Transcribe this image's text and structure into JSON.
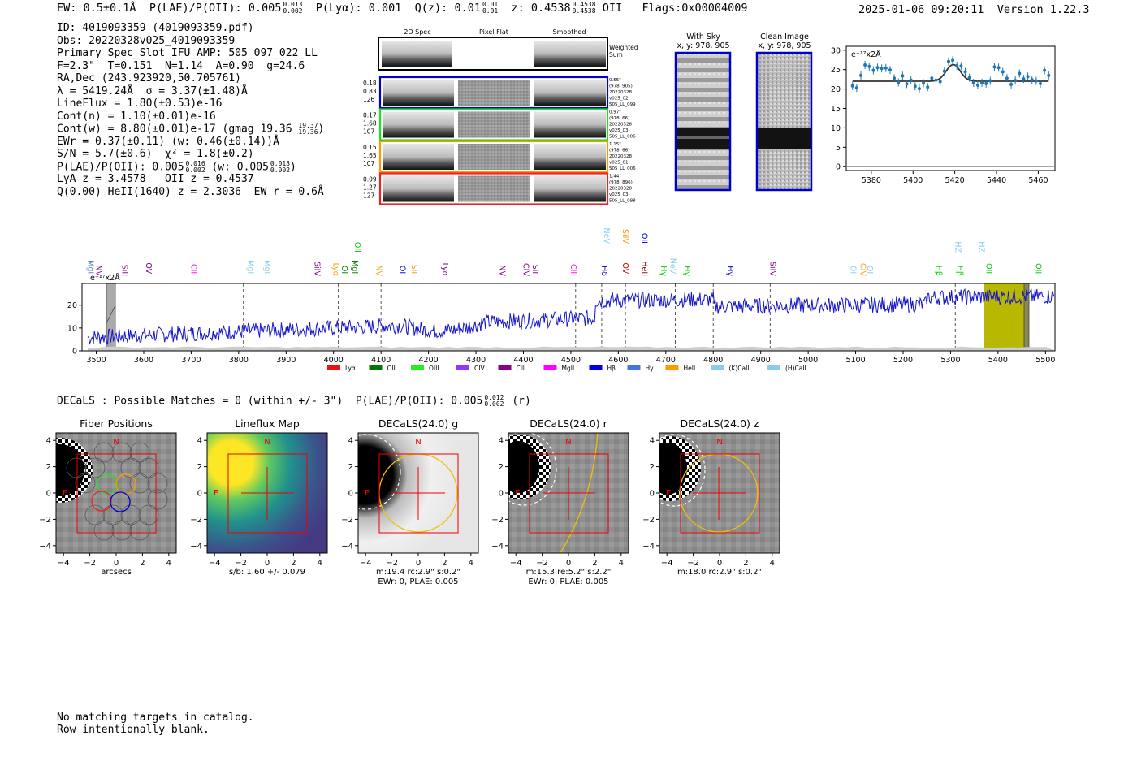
{
  "header": {
    "ew": "EW: 0.5±0.1Å",
    "plae": "P(LAE)/P(OII): 0.005",
    "plae_hi": "0.013",
    "plae_lo": "0.002",
    "plya": "P(Lyα): 0.001",
    "qz": "Q(z): 0.01",
    "qz_hi": "0.01",
    "qz_lo": "0.01",
    "z": "z: 0.4538",
    "z_hi": "0.4538",
    "z_lo": "0.4538",
    "z_line": "OII",
    "flags": "Flags:0x00004009",
    "datetime": "2025-01-06 09:20:11",
    "version": "Version 1.22.3"
  },
  "info": {
    "id": "ID: 4019093359 (4019093359.pdf)",
    "obs": "Obs: 20220328v025_4019093359",
    "primary": "Primary Spec_Slot_IFU_AMP: 505_097_022_LL",
    "fit": "F=2.3\"  T=0.151  N=1.14  A=0.90  g=24.6",
    "radec": "RA,Dec (243.923920,50.705761)",
    "lambda": "λ = 5419.24Å  σ = 3.37(±1.48)Å",
    "lineflux": "LineFlux = 1.80(±0.53)e-16",
    "contn": "Cont(n) = 1.10(±0.01)e-16",
    "contw": "Cont(w) = 8.80(±0.01)e-17 (gmag 19.36",
    "contw_hi": "19.37",
    "contw_lo": "19.36",
    "contw_close": ")",
    "ewr": "EWr = 0.37(±0.11) (w: 0.46(±0.14))Å",
    "sn": "S/N = 5.7(±0.6)  χ² = 1.8(±0.2)",
    "plae": "P(LAE)/P(OII): 0.005",
    "plae_hi": "0.016",
    "plae_lo": "0.002",
    "plae_w": "(w: 0.005",
    "plae_w_hi": "0.013",
    "plae_w_lo": "0.002",
    "plae_close": ")",
    "lya": "LyA z = 3.4578   OII z = 0.4537",
    "heii": "Q(0.00) HeII(1640) z = 2.3036  EW r = 0.6Å"
  },
  "cutouts": {
    "col_headers": [
      "2D Spec",
      "Pixel Flat",
      "Smoothed"
    ],
    "weighted_sum": [
      "Weighted",
      "Sum"
    ],
    "rows": [
      {
        "color": "#0000cc",
        "left": [
          "0.18",
          "0.83",
          "126"
        ],
        "right": [
          "0.55\"",
          "(978, 905)",
          "20220328",
          "v025_02",
          "505_LL_099"
        ]
      },
      {
        "color": "#22dd22",
        "left": [
          "0.17",
          "1.68",
          "107"
        ],
        "right": [
          "0.97\"",
          "(978, 66)",
          "20220328",
          "v025_03",
          "505_LL_006"
        ]
      },
      {
        "color": "#ff9900",
        "left": [
          "0.15",
          "1.65",
          "107"
        ],
        "right": [
          "1.15\"",
          "(978, 66)",
          "20220328",
          "v025_01",
          "505_LL_006"
        ]
      },
      {
        "color": "#ee2222",
        "left": [
          "0.09",
          "1.27",
          "127"
        ],
        "right": [
          "1.44\"",
          "(978, 896)",
          "20220328",
          "v025_03",
          "505_LL_098"
        ]
      }
    ],
    "with_sky": [
      "With Sky",
      "x, y: 978, 905"
    ],
    "clean_image": [
      "Clean Image",
      "x, y: 978, 905"
    ]
  },
  "zoom_chart": {
    "type": "scatter",
    "unit_label": "e⁻¹⁷x2Å",
    "x_ticks": [
      "5380",
      "5400",
      "5420",
      "5440",
      "5460"
    ],
    "y_ticks": [
      "0",
      "5",
      "10",
      "15",
      "20",
      "25",
      "30"
    ],
    "xlim": [
      5368,
      5468
    ],
    "ylim": [
      -1,
      31
    ],
    "points": [
      [
        5371,
        20.8
      ],
      [
        5373,
        20.3
      ],
      [
        5375,
        23.5
      ],
      [
        5377,
        26.2
      ],
      [
        5379,
        25.8
      ],
      [
        5381,
        24.8
      ],
      [
        5383,
        25.5
      ],
      [
        5385,
        25.3
      ],
      [
        5387,
        25.4
      ],
      [
        5389,
        24.9
      ],
      [
        5391,
        22.8
      ],
      [
        5393,
        21.7
      ],
      [
        5395,
        23.4
      ],
      [
        5397,
        21.3
      ],
      [
        5399,
        22.3
      ],
      [
        5401,
        20.7
      ],
      [
        5403,
        20.1
      ],
      [
        5405,
        21.5
      ],
      [
        5407,
        20.5
      ],
      [
        5409,
        22.8
      ],
      [
        5411,
        22.3
      ],
      [
        5413,
        21.9
      ],
      [
        5415,
        24.6
      ],
      [
        5417,
        27.1
      ],
      [
        5419,
        27.4
      ],
      [
        5421,
        26.0
      ],
      [
        5423,
        25.9
      ],
      [
        5425,
        24.4
      ],
      [
        5427,
        22.9
      ],
      [
        5429,
        21.6
      ],
      [
        5431,
        21.0
      ],
      [
        5433,
        21.6
      ],
      [
        5435,
        21.4
      ],
      [
        5437,
        22.1
      ],
      [
        5439,
        25.7
      ],
      [
        5441,
        25.5
      ],
      [
        5443,
        24.4
      ],
      [
        5445,
        22.8
      ],
      [
        5447,
        21.2
      ],
      [
        5449,
        22.2
      ],
      [
        5451,
        24.0
      ],
      [
        5453,
        22.6
      ],
      [
        5455,
        23.2
      ],
      [
        5457,
        22.4
      ],
      [
        5459,
        22.1
      ],
      [
        5461,
        21.4
      ],
      [
        5463,
        24.8
      ],
      [
        5465,
        23.5
      ]
    ],
    "fit_continuum": 22.0,
    "fit_peak": 5419.24,
    "fit_amp": 4.3,
    "fit_sigma": 3.37
  },
  "spectrum": {
    "type": "line",
    "unit_label": "e⁻¹⁷x2Å",
    "x_ticks": [
      "3500",
      "3600",
      "3700",
      "3800",
      "3900",
      "4000",
      "4100",
      "4200",
      "4300",
      "4400",
      "4500",
      "4600",
      "4700",
      "4800",
      "4900",
      "5000",
      "5100",
      "5200",
      "5300",
      "5400",
      "5500"
    ],
    "y_ticks": [
      "0",
      "10",
      "20"
    ],
    "xlim": [
      3470,
      5520
    ],
    "ylim": [
      0,
      29.5
    ],
    "line_labels": [
      {
        "t": "MgII",
        "w": 3483,
        "c": "#5b7bd5",
        "row": 1
      },
      {
        "t": "NV",
        "w": 3500,
        "c": "#800080",
        "row": 1
      },
      {
        "t": "SiII",
        "w": 3555,
        "c": "#800080",
        "row": 1
      },
      {
        "t": "OVI",
        "w": 3605,
        "c": "#800080",
        "row": 1
      },
      {
        "t": "CIII",
        "w": 3700,
        "c": "#ff00ff",
        "row": 1
      },
      {
        "t": "MgII",
        "w": 3820,
        "c": "#87ceeb",
        "row": 1
      },
      {
        "t": "MgII",
        "w": 3855,
        "c": "#87ceeb",
        "row": 1
      },
      {
        "t": "SiIV",
        "w": 3960,
        "c": "#800080",
        "row": 1
      },
      {
        "t": "Lyα",
        "w": 4000,
        "c": "#ff9900",
        "row": 1
      },
      {
        "t": "OII",
        "w": 4018,
        "c": "#008000",
        "row": 1
      },
      {
        "t": "MgII",
        "w": 4040,
        "c": "#008000",
        "row": 1
      },
      {
        "t": "OII",
        "w": 4045,
        "c": "#00cc00",
        "row": 2
      },
      {
        "t": "NV",
        "w": 4090,
        "c": "#ff9900",
        "row": 1
      },
      {
        "t": "OII",
        "w": 4140,
        "c": "#0000cc",
        "row": 1
      },
      {
        "t": "SiII",
        "w": 4165,
        "c": "#ff9900",
        "row": 1
      },
      {
        "t": "Lyα",
        "w": 4230,
        "c": "#800080",
        "row": 1
      },
      {
        "t": "NV",
        "w": 4350,
        "c": "#800080",
        "row": 1
      },
      {
        "t": "CIV",
        "w": 4400,
        "c": "#800080",
        "row": 1
      },
      {
        "t": "SiII",
        "w": 4420,
        "c": "#800080",
        "row": 1
      },
      {
        "t": "CIII",
        "w": 4500,
        "c": "#ff00ff",
        "row": 1
      },
      {
        "t": "Hδ",
        "w": 4565,
        "c": "#0000cc",
        "row": 1
      },
      {
        "t": "NeV",
        "w": 4570,
        "c": "#87ceeb",
        "row": 3
      },
      {
        "t": "OVI",
        "w": 4610,
        "c": "#cc0000",
        "row": 1
      },
      {
        "t": "SiIV",
        "w": 4610,
        "c": "#ff9900",
        "row": 3
      },
      {
        "t": "OII",
        "w": 4650,
        "c": "#0000cc",
        "row": 3
      },
      {
        "t": "HeII",
        "w": 4650,
        "c": "#800000",
        "row": 1
      },
      {
        "t": "Hγ",
        "w": 4690,
        "c": "#00cc00",
        "row": 1
      },
      {
        "t": "NeVI",
        "w": 4710,
        "c": "#87ceeb",
        "row": 1
      },
      {
        "t": "Hγ",
        "w": 4740,
        "c": "#00cc00",
        "row": 1
      },
      {
        "t": "Hγ",
        "w": 4830,
        "c": "#0000cc",
        "row": 1
      },
      {
        "t": "SiIV",
        "w": 4920,
        "c": "#800080",
        "row": 1
      },
      {
        "t": "OII",
        "w": 5090,
        "c": "#87ceeb",
        "row": 1
      },
      {
        "t": "CIV",
        "w": 5110,
        "c": "#ff9900",
        "row": 1
      },
      {
        "t": "OII",
        "w": 5125,
        "c": "#87ceeb",
        "row": 1
      },
      {
        "t": "Hβ",
        "w": 5270,
        "c": "#00cc00",
        "row": 1
      },
      {
        "t": "HZ",
        "w": 5310,
        "c": "#87ceeb",
        "row": 2
      },
      {
        "t": "Hβ",
        "w": 5315,
        "c": "#00cc00",
        "row": 1
      },
      {
        "t": "HZ",
        "w": 5360,
        "c": "#87ceeb",
        "row": 2
      },
      {
        "t": "OIII",
        "w": 5375,
        "c": "#00cc00",
        "row": 1
      },
      {
        "t": "OIII",
        "w": 5480,
        "c": "#00cc00",
        "row": 1
      }
    ],
    "legend": [
      {
        "t": "Lyα",
        "c": "#ee1111"
      },
      {
        "t": "OII",
        "c": "#007700"
      },
      {
        "t": "OIII",
        "c": "#22ee22"
      },
      {
        "t": "CIV",
        "c": "#9933ff"
      },
      {
        "t": "CIII",
        "c": "#880088"
      },
      {
        "t": "MgII",
        "c": "#ff00ff"
      },
      {
        "t": "Hβ",
        "c": "#0000ee"
      },
      {
        "t": "Hγ",
        "c": "#4477dd"
      },
      {
        "t": "HeII",
        "c": "#ff9900"
      },
      {
        "t": "(K)CaII",
        "c": "#88ccee"
      },
      {
        "t": "(H)CaII",
        "c": "#88ccee"
      }
    ]
  },
  "decals": {
    "line": "DECaLS : Possible Matches = 0 (within +/- 3\")  P(LAE)/P(OII): 0.005",
    "hi": "0.012",
    "lo": "0.002",
    "band": "(r)",
    "panels": [
      {
        "title": "Fiber Positions",
        "caption": [
          "arcsecs"
        ]
      },
      {
        "title": "Lineflux Map",
        "caption": [
          "s/b: 1.60 +/- 0.079"
        ]
      },
      {
        "title": "DECaLS(24.0) g",
        "caption": [
          "m:19.4 rc:2.9\"  s:0.2\"",
          "EWr: 0, PLAE: 0.005"
        ]
      },
      {
        "title": "DECaLS(24.0) r",
        "caption": [
          "m:15.3  re:5.2\"  s:2.2\"",
          "EWr: 0, PLAE: 0.005"
        ]
      },
      {
        "title": "DECaLS(24.0) z",
        "caption": [
          "m:18.0 rc:2.9\"  s:0.2\""
        ]
      }
    ],
    "ticks": [
      "−4",
      "−2",
      "0",
      "2",
      "4"
    ],
    "compass_n": "N",
    "compass_e": "E"
  },
  "footer": {
    "line1": "No matching targets in catalog.",
    "line2": "Row intentionally blank."
  }
}
